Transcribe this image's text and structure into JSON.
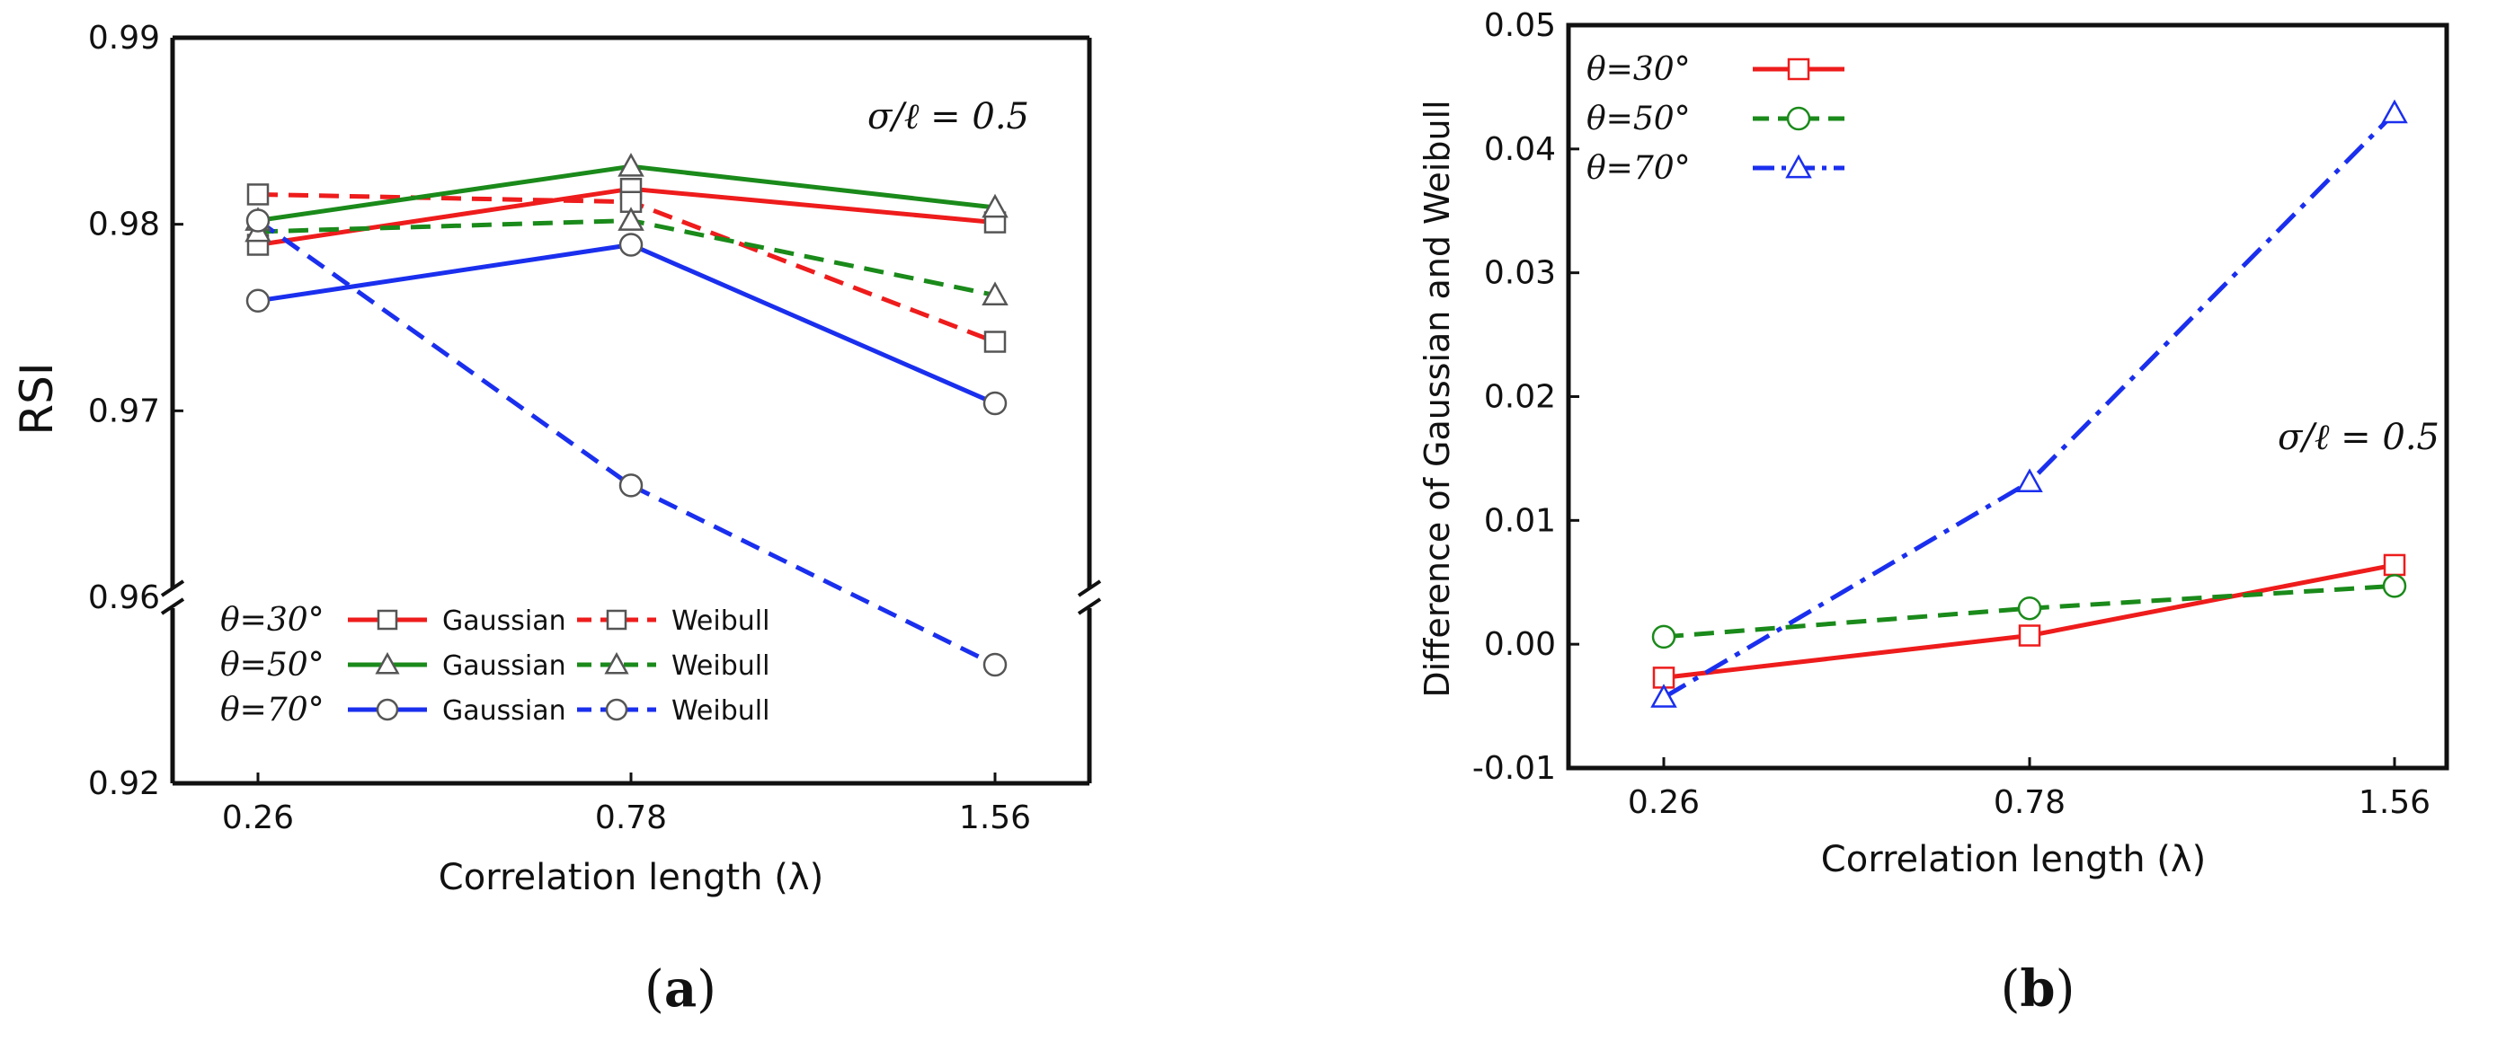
{
  "colors": {
    "theta30": "#ee1c1c",
    "theta50": "#1a8a1a",
    "theta70": "#1a2fee",
    "axis": "#111111"
  },
  "chart_data": [
    {
      "id": "a",
      "type": "line",
      "panel_letter": "a",
      "panel_label_open": "(",
      "panel_label_close": ")",
      "xlabel": "Correlation length (λ)",
      "ylabel": "RSI",
      "categories": [
        "0.26",
        "0.78",
        "1.56"
      ],
      "broken_axis": true,
      "yticks_upper": [
        "0.96",
        "0.97",
        "0.98",
        "0.99"
      ],
      "yticks_lower": [
        "0.92"
      ],
      "ylim_upper": [
        0.96,
        0.99
      ],
      "ylim_lower": [
        0.92,
        0.96
      ],
      "annotation": "σ/ℓ = 0.5",
      "legend_gaussian": "Gaussian",
      "legend_weibull": "Weibull",
      "series": [
        {
          "name": "θ=30°",
          "distribution": "Gaussian",
          "color_key": "theta30",
          "dash": "solid",
          "marker": "square",
          "values": [
            0.9789,
            0.9819,
            0.9801
          ]
        },
        {
          "name": "θ=30°",
          "distribution": "Weibull",
          "color_key": "theta30",
          "dash": "dashed",
          "marker": "square",
          "values": [
            0.9816,
            0.9812,
            0.9737
          ]
        },
        {
          "name": "θ=50°",
          "distribution": "Gaussian",
          "color_key": "theta50",
          "dash": "solid",
          "marker": "triangle",
          "values": [
            0.9802,
            0.9831,
            0.9809
          ]
        },
        {
          "name": "θ=50°",
          "distribution": "Weibull",
          "color_key": "theta50",
          "dash": "dashed",
          "marker": "triangle",
          "values": [
            0.9796,
            0.9802,
            0.9762
          ]
        },
        {
          "name": "θ=70°",
          "distribution": "Gaussian",
          "color_key": "theta70",
          "dash": "solid",
          "marker": "circle",
          "values": [
            0.9759,
            0.9789,
            0.9704
          ]
        },
        {
          "name": "θ=70°",
          "distribution": "Weibull",
          "color_key": "theta70",
          "dash": "dashed",
          "marker": "circle",
          "values": [
            0.9802,
            0.966,
            0.9455
          ]
        }
      ]
    },
    {
      "id": "b",
      "type": "line",
      "panel_letter": "b",
      "panel_label_open": "(",
      "panel_label_close": ")",
      "xlabel": "Correlation length (λ)",
      "ylabel": "Difference of Gaussian and Weibull",
      "categories": [
        "0.26",
        "0.78",
        "1.56"
      ],
      "yticks": [
        "-0.01",
        "0.00",
        "0.01",
        "0.02",
        "0.03",
        "0.04",
        "0.05"
      ],
      "ylim": [
        -0.01,
        0.05
      ],
      "annotation": "σ/ℓ = 0.5",
      "series": [
        {
          "name": "θ=30°",
          "color_key": "theta30",
          "dash": "solid",
          "marker": "square",
          "values": [
            -0.0027,
            0.0007,
            0.0064
          ]
        },
        {
          "name": "θ=50°",
          "color_key": "theta50",
          "dash": "dashed",
          "marker": "circle",
          "values": [
            0.0006,
            0.0029,
            0.0047
          ]
        },
        {
          "name": "θ=70°",
          "color_key": "theta70",
          "dash": "dashdot",
          "marker": "triangle",
          "values": [
            -0.0043,
            0.0131,
            0.0429
          ]
        }
      ]
    }
  ]
}
